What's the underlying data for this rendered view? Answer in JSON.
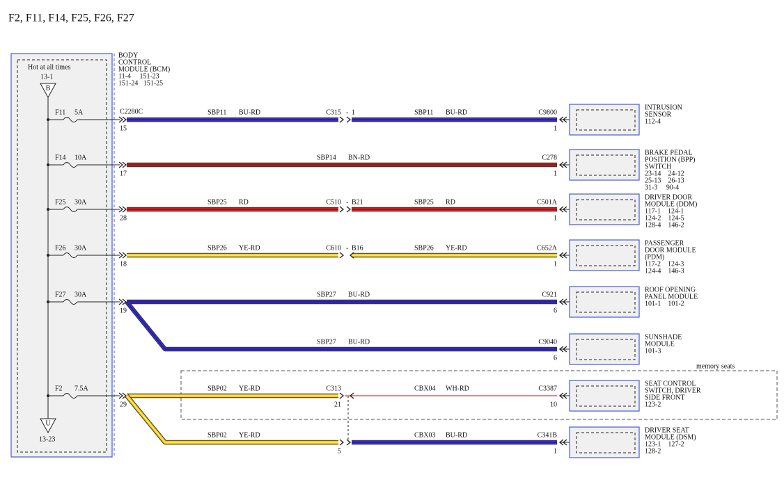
{
  "title": "F2, F11, F14, F25, F26, F27",
  "bcm": {
    "hot": "Hot at all times",
    "top_ref": "13-1",
    "top_node": "B",
    "bottom_node": "U",
    "bottom_ref": "13-23",
    "label": [
      "BODY",
      "CONTROL",
      "MODULE (BCM)",
      "11-4     151-23",
      "151-24   151-25"
    ],
    "connector": "C2280C"
  },
  "memory_seats": "memory seats",
  "rows": [
    {
      "fuse": "F11",
      "rating": "5A",
      "pin": "15",
      "segments": [
        {
          "circuit": "SBP11",
          "color_code": "BU-RD",
          "stroke": "#3b2ed4",
          "stripe": "#1c1890"
        },
        {
          "circuit": "SBP11",
          "color_code": "BU-RD",
          "stroke": "#3b2ed4",
          "stripe": "#1c1890"
        }
      ],
      "inline": {
        "connector": "C315",
        "sep": "-",
        "pin": "1"
      },
      "end_connector": "C9800",
      "end_pin": "1",
      "module": [
        "INTRUSION",
        "SENSOR",
        "112-4"
      ]
    },
    {
      "fuse": "F14",
      "rating": "10A",
      "pin": "17",
      "segments": [
        {
          "circuit": "SBP14",
          "color_code": "BN-RD",
          "stroke": "#b02a2a",
          "stripe": "#7a1010"
        }
      ],
      "end_connector": "C278",
      "end_pin": "1",
      "module": [
        "BRAKE PEDAL",
        "POSITION (BPP)",
        "SWITCH",
        "23-14    24-12",
        "25-13    26-13",
        "31-3     90-4"
      ]
    },
    {
      "fuse": "F25",
      "rating": "30A",
      "pin": "28",
      "segments": [
        {
          "circuit": "SBP25",
          "color_code": "RD",
          "stroke": "#e51a1a",
          "stripe": "#a00000"
        },
        {
          "circuit": "SBP25",
          "color_code": "RD",
          "stroke": "#e51a1a",
          "stripe": "#a00000"
        }
      ],
      "inline": {
        "connector": "C510",
        "sep": "-",
        "pin": "B21"
      },
      "end_connector": "C501A",
      "end_pin": "1",
      "module": [
        "DRIVER DOOR",
        "MODULE (DDM)",
        "117-1    124-1",
        "124-2    124-5",
        "128-4    146-2"
      ]
    },
    {
      "fuse": "F26",
      "rating": "30A",
      "pin": "18",
      "segments": [
        {
          "circuit": "SBP26",
          "color_code": "YE-RD",
          "stroke": "#f7c600",
          "stripe": "#fff2a0"
        },
        {
          "circuit": "SBP26",
          "color_code": "YE-RD",
          "stroke": "#f7c600",
          "stripe": "#fff2a0"
        }
      ],
      "inline": {
        "connector": "C610",
        "sep": "-",
        "pin": "B16"
      },
      "end_connector": "C652A",
      "end_pin": "1",
      "module": [
        "PASSENGER",
        "DOOR MODULE",
        "(PDM)",
        "117-2    124-3",
        "124-4    146-3"
      ]
    },
    {
      "fuse": "F27",
      "rating": "30A",
      "pin": "19",
      "segments": [
        {
          "circuit": "SBP27",
          "color_code": "BU-RD",
          "stroke": "#3b2ed4",
          "stripe": "#1c1890"
        }
      ],
      "end_connector": "C921",
      "end_pin": "6",
      "module": [
        "ROOF OPENING",
        "PANEL MODULE",
        "101-1    101-2"
      ]
    },
    {
      "segments": [
        {
          "circuit": "SBP27",
          "color_code": "BU-RD",
          "stroke": "#3b2ed4",
          "stripe": "#1c1890"
        }
      ],
      "end_connector": "C9040",
      "end_pin": "6",
      "module": [
        "SUNSHADE",
        "MODULE",
        "101-3"
      ]
    },
    {
      "fuse": "F2",
      "rating": "7.5A",
      "pin": "29",
      "segments": [
        {
          "circuit": "SBP02",
          "color_code": "YE-RD",
          "stroke": "#f7c600",
          "stripe": "#fff2a0"
        },
        {
          "circuit": "CBX04",
          "color_code": "WH-RD",
          "stroke": "#ffffff",
          "stripe": "#d01010"
        }
      ],
      "inline": {
        "connector": "C313",
        "pin": "21"
      },
      "end_connector": "C3387",
      "end_pin": "10",
      "module": [
        "SEAT CONTROL",
        "SWITCH, DRIVER",
        "SIDE FRONT",
        "123-2"
      ]
    },
    {
      "segments": [
        {
          "circuit": "SBP02",
          "color_code": "YE-RD",
          "stroke": "#f7c600",
          "stripe": "#fff2a0"
        },
        {
          "circuit": "CBX03",
          "color_code": "BU-RD",
          "stroke": "#3b2ed4",
          "stripe": "#1c1890"
        }
      ],
      "inline": {
        "pin": "5"
      },
      "end_connector": "C341B",
      "end_pin": "1",
      "module": [
        "DRIVER SEAT",
        "MODULE (DSM)",
        "123-1    127-2",
        "128-2"
      ]
    }
  ]
}
